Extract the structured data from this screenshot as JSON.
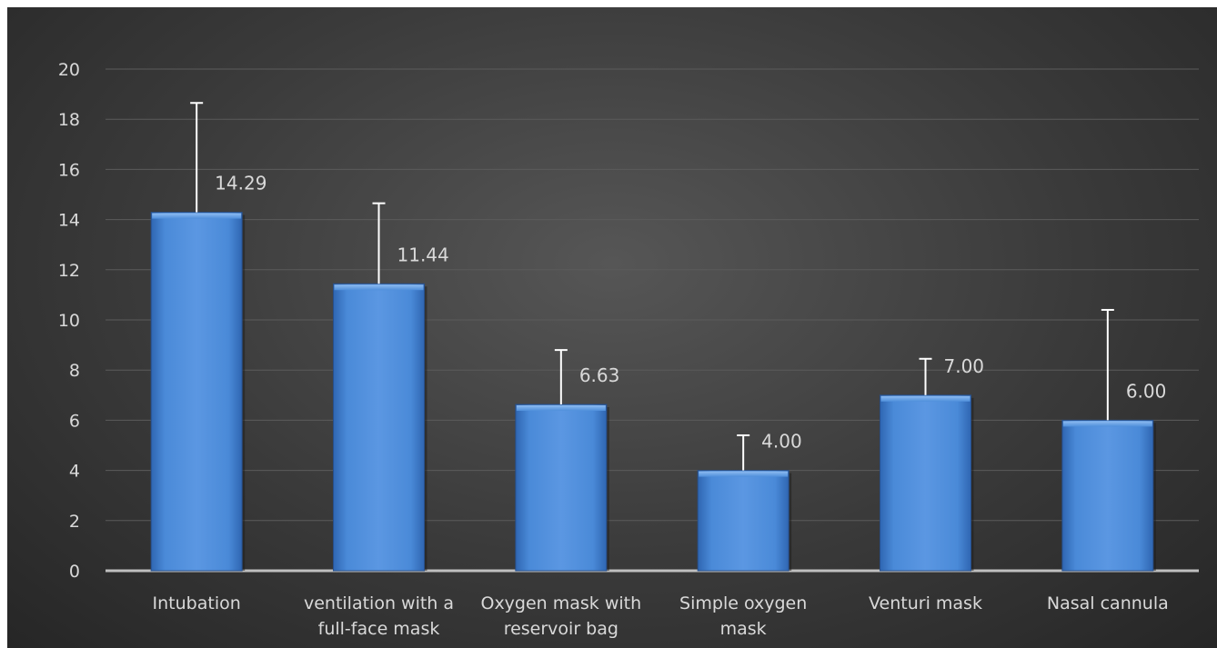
{
  "chart_data": {
    "type": "bar",
    "title": "",
    "xlabel": "",
    "ylabel": "",
    "ylim": [
      0,
      20
    ],
    "yticks": [
      0,
      2,
      4,
      6,
      8,
      10,
      12,
      14,
      16,
      18,
      20
    ],
    "grid": true,
    "categories": [
      [
        "Intubation"
      ],
      [
        "ventilation with a",
        "full-face mask"
      ],
      [
        "Oxygen mask with",
        "reservoir bag"
      ],
      [
        "Simple oxygen",
        "mask"
      ],
      [
        "Venturi mask"
      ],
      [
        "Nasal cannula"
      ]
    ],
    "values": [
      14.29,
      11.44,
      6.63,
      4.0,
      7.0,
      6.0
    ],
    "data_labels": [
      "14.29",
      "11.44",
      "6.63",
      "4.00",
      "7.00",
      "6.00"
    ],
    "error_bars_upper": [
      18.65,
      14.65,
      8.8,
      5.4,
      8.45,
      10.4
    ],
    "colors": {
      "bar_top": "#5a97e2",
      "bar_mid": "#3d7dd0",
      "bar_bottom": "#2f66b2",
      "background": "#3a3a3a",
      "gridline": "#5b5b5b",
      "axis": "#bfbfbf",
      "error_bar": "#ffffff",
      "text": "#d9d9d9"
    }
  }
}
